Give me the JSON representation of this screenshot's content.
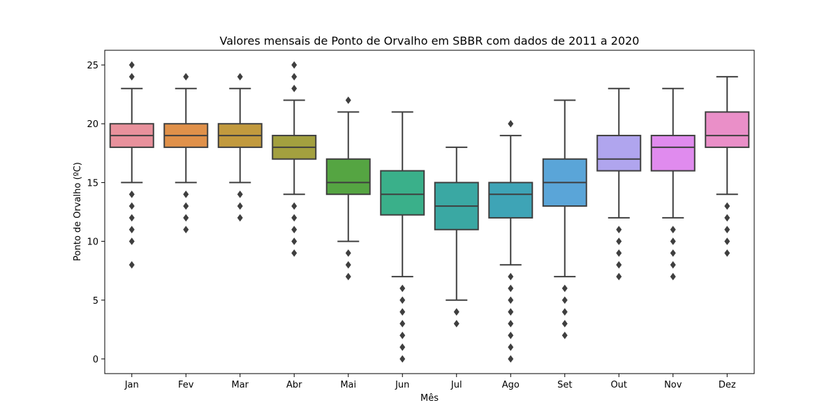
{
  "chart_data": {
    "type": "box",
    "title": "Valores mensais de Ponto de Orvalho em SBBR com dados de 2011 a 2020",
    "xlabel": "Mês",
    "ylabel": "Ponto de Orvalho (ºC)",
    "ylim": [
      -1.25,
      26.25
    ],
    "yticks": [
      0,
      5,
      10,
      15,
      20,
      25
    ],
    "grid": false,
    "legend": "none",
    "categories": [
      "Jan",
      "Fev",
      "Mar",
      "Abr",
      "Mai",
      "Jun",
      "Jul",
      "Ago",
      "Set",
      "Out",
      "Nov",
      "Dez"
    ],
    "colors": [
      "#e8919c",
      "#e0914a",
      "#c29a3e",
      "#a3a03f",
      "#55a542",
      "#3ab08a",
      "#3aa8a3",
      "#3ea4b6",
      "#5aa5d8",
      "#b0a5ee",
      "#e08bee",
      "#ea8fc8"
    ],
    "boxes": [
      {
        "whislo": 15,
        "q1": 18,
        "med": 19,
        "q3": 20,
        "whishi": 23,
        "fliers": [
          8,
          10,
          11,
          12,
          13,
          14,
          24,
          25
        ]
      },
      {
        "whislo": 15,
        "q1": 18,
        "med": 19,
        "q3": 20,
        "whishi": 23,
        "fliers": [
          11,
          12,
          13,
          14,
          24
        ]
      },
      {
        "whislo": 15,
        "q1": 18,
        "med": 19,
        "q3": 20,
        "whishi": 23,
        "fliers": [
          12,
          13,
          14,
          24
        ]
      },
      {
        "whislo": 14,
        "q1": 17,
        "med": 18,
        "q3": 19,
        "whishi": 22,
        "fliers": [
          9,
          10,
          11,
          12,
          13,
          23,
          24,
          25
        ]
      },
      {
        "whislo": 10,
        "q1": 14,
        "med": 15,
        "q3": 17,
        "whishi": 21,
        "fliers": [
          7,
          8,
          9,
          22
        ]
      },
      {
        "whislo": 7,
        "q1": 12.25,
        "med": 14,
        "q3": 16,
        "whishi": 21,
        "fliers": [
          0,
          1,
          2,
          3,
          4,
          5,
          6
        ]
      },
      {
        "whislo": 5,
        "q1": 11,
        "med": 13,
        "q3": 15,
        "whishi": 18,
        "fliers": [
          3,
          4
        ]
      },
      {
        "whislo": 8,
        "q1": 12,
        "med": 14,
        "q3": 15,
        "whishi": 19,
        "fliers": [
          0,
          1,
          2,
          3,
          4,
          5,
          6,
          7,
          20
        ]
      },
      {
        "whislo": 7,
        "q1": 13,
        "med": 15,
        "q3": 17,
        "whishi": 22,
        "fliers": [
          2,
          3,
          4,
          5,
          6
        ]
      },
      {
        "whislo": 12,
        "q1": 16,
        "med": 17,
        "q3": 19,
        "whishi": 23,
        "fliers": [
          7,
          8,
          9,
          10,
          11
        ]
      },
      {
        "whislo": 12,
        "q1": 16,
        "med": 18,
        "q3": 19,
        "whishi": 23,
        "fliers": [
          7,
          8,
          9,
          10,
          11
        ]
      },
      {
        "whislo": 14,
        "q1": 18,
        "med": 19,
        "q3": 21,
        "whishi": 24,
        "fliers": [
          9,
          10,
          11,
          12,
          13
        ]
      }
    ]
  }
}
